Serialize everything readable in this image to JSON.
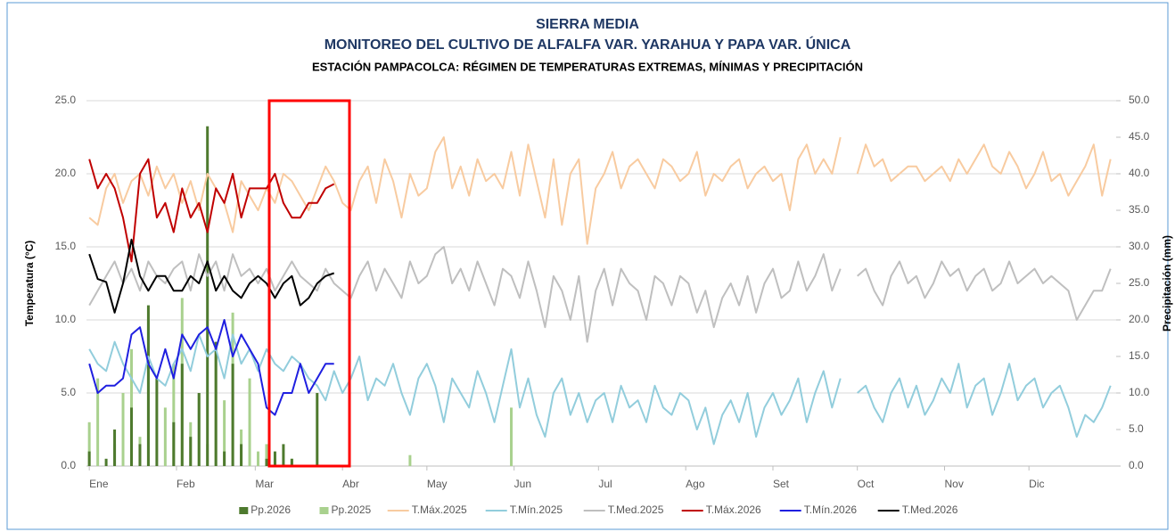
{
  "chart_data": {
    "type": "line",
    "title": "SIERRA MEDIA",
    "subtitle": "MONITOREO DEL CULTIVO DE ALFALFA VAR. YARAHUA Y PAPA VAR. ÚNICA",
    "description": "ESTACIÓN PAMPACOLCA: RÉGIMEN DE TEMPERATURAS EXTREMAS, MÍNIMAS Y PRECIPITACIÓN",
    "y_label": "Temperatura (°C)",
    "y2_label": "Precipitación (mm)",
    "grid": true,
    "legend": "bottom",
    "xlim": [
      0,
      366
    ],
    "xticks": [
      {
        "value": 1,
        "label": "Ene"
      },
      {
        "value": 32,
        "label": "Feb"
      },
      {
        "value": 60,
        "label": "Mar"
      },
      {
        "value": 91,
        "label": "Abr"
      },
      {
        "value": 121,
        "label": "May"
      },
      {
        "value": 152,
        "label": "Jun"
      },
      {
        "value": 182,
        "label": "Jul"
      },
      {
        "value": 213,
        "label": "Ago"
      },
      {
        "value": 244,
        "label": "Set"
      },
      {
        "value": 274,
        "label": "Oct"
      },
      {
        "value": 305,
        "label": "Nov"
      },
      {
        "value": 335,
        "label": "Dic"
      }
    ],
    "ylim": [
      0,
      25
    ],
    "yticks": [
      {
        "value": 0,
        "label": "0.0"
      },
      {
        "value": 5,
        "label": "5.0"
      },
      {
        "value": 10,
        "label": "10.0"
      },
      {
        "value": 15,
        "label": "15.0"
      },
      {
        "value": 20,
        "label": "20.0"
      },
      {
        "value": 25,
        "label": "25.0"
      }
    ],
    "y2lim": [
      0,
      50
    ],
    "y2ticks": [
      {
        "value": 0,
        "label": "0.0"
      },
      {
        "value": 5,
        "label": "5.0"
      },
      {
        "value": 10,
        "label": "10.0"
      },
      {
        "value": 15,
        "label": "15.0"
      },
      {
        "value": 20,
        "label": "20.0"
      },
      {
        "value": 25,
        "label": "25.0"
      },
      {
        "value": 30,
        "label": "30.0"
      },
      {
        "value": 35,
        "label": "35.0"
      },
      {
        "value": 40,
        "label": "40.0"
      },
      {
        "value": 45,
        "label": "45.0"
      },
      {
        "value": 50,
        "label": "50.0"
      }
    ],
    "x": [
      1,
      4,
      7,
      10,
      13,
      16,
      19,
      22,
      25,
      28,
      31,
      34,
      37,
      40,
      43,
      46,
      49,
      52,
      55,
      58,
      61,
      64,
      67,
      70,
      73,
      76,
      79,
      82,
      85,
      88,
      91,
      94,
      97,
      100,
      103,
      106,
      109,
      112,
      115,
      118,
      121,
      124,
      127,
      130,
      133,
      136,
      139,
      142,
      145,
      148,
      151,
      154,
      157,
      160,
      163,
      166,
      169,
      172,
      175,
      178,
      181,
      184,
      187,
      190,
      193,
      196,
      199,
      202,
      205,
      208,
      211,
      214,
      217,
      220,
      223,
      226,
      229,
      232,
      235,
      238,
      241,
      244,
      247,
      250,
      253,
      256,
      259,
      262,
      265,
      268,
      271,
      274,
      277,
      280,
      283,
      286,
      289,
      292,
      295,
      298,
      301,
      304,
      307,
      310,
      313,
      316,
      319,
      322,
      325,
      328,
      331,
      334,
      337,
      340,
      343,
      346,
      349,
      352,
      355,
      358,
      361,
      364
    ],
    "series": [
      {
        "name": "Pp.2026",
        "type": "bar",
        "axis": "y2",
        "color": "#4e7a2e",
        "x": [
          1,
          4,
          7,
          10,
          13,
          16,
          19,
          22,
          25,
          28,
          31,
          34,
          37,
          40,
          43,
          46,
          49,
          52,
          55,
          58,
          61,
          64,
          67,
          70,
          73,
          76,
          79,
          82,
          85,
          88
        ],
        "values": [
          2,
          0,
          1,
          5,
          0,
          8,
          3,
          22,
          12,
          0,
          6,
          14,
          4,
          10,
          46.5,
          17,
          2,
          14,
          3,
          0,
          0,
          1,
          2,
          3,
          1,
          0,
          0,
          10,
          0,
          0
        ]
      },
      {
        "name": "Pp.2025",
        "type": "bar",
        "axis": "y2",
        "color": "#a9d18e",
        "values": [
          6,
          12,
          0,
          3,
          10,
          16,
          4,
          20,
          0,
          8,
          14,
          23,
          6,
          10,
          3,
          15,
          9,
          21,
          5,
          12,
          2,
          3,
          1,
          0,
          1,
          0,
          0,
          0,
          0,
          0,
          0,
          0,
          0,
          0,
          0,
          0,
          0,
          0,
          1.5,
          0,
          0,
          0,
          0,
          0,
          0,
          0,
          0,
          0,
          0,
          0,
          8,
          0,
          0,
          0,
          0,
          0,
          0,
          0,
          0,
          0,
          0,
          0,
          0,
          0,
          0,
          0,
          0,
          0,
          0,
          0,
          0,
          0,
          0,
          0,
          0,
          0,
          0,
          0,
          0,
          0,
          0,
          0,
          0,
          0,
          0,
          0,
          0,
          0,
          0,
          0,
          0,
          0,
          0,
          0,
          0,
          0,
          0,
          0,
          0,
          0,
          0,
          0,
          0,
          0,
          0,
          0,
          0,
          0,
          0,
          0,
          0,
          0,
          0,
          0,
          0,
          0,
          0,
          0,
          0,
          0,
          0,
          0
        ]
      },
      {
        "name": "T.Máx.2025",
        "color": "#f8cba0",
        "values": [
          17,
          16.5,
          19,
          20,
          18,
          19.5,
          20,
          18.5,
          20.5,
          19,
          20,
          18,
          19.5,
          17.5,
          20,
          19,
          18,
          16,
          19.5,
          18.5,
          17.5,
          19,
          18,
          20,
          19.5,
          18.5,
          17.5,
          19,
          20.5,
          19.5,
          18,
          17.5,
          19.5,
          20.5,
          18,
          21,
          19.5,
          17,
          20,
          18.5,
          19,
          21.5,
          22.5,
          19,
          20.5,
          18.5,
          21,
          19.5,
          20,
          19,
          21.5,
          18.5,
          22,
          19.5,
          17,
          21,
          16.5,
          20,
          21,
          15.2,
          19,
          20,
          21.5,
          19,
          20.5,
          21,
          20,
          19,
          21,
          20.5,
          19.5,
          20,
          21.5,
          18.5,
          20,
          19.5,
          20.5,
          21,
          19,
          20,
          20.5,
          19.5,
          20,
          17.5,
          21,
          22,
          20,
          21,
          20,
          22.5,
          null,
          20,
          22,
          20.5,
          21,
          19.5,
          20,
          20.5,
          20.5,
          19.5,
          20,
          20.5,
          19.5,
          21,
          20,
          21,
          22,
          20.5,
          20,
          21.5,
          20.5,
          19,
          20,
          21.5,
          19.5,
          20,
          18.5,
          19.5,
          20.5,
          22,
          18.5,
          21
        ]
      },
      {
        "name": "T.Mín.2025",
        "color": "#92cddc",
        "values": [
          8,
          7,
          6.5,
          8.5,
          7,
          6,
          5,
          7.5,
          6,
          5.5,
          7,
          8,
          6.5,
          9,
          7.5,
          8,
          6,
          9,
          7,
          8,
          6.5,
          8,
          7,
          6.5,
          7.5,
          7,
          6,
          5.5,
          4.5,
          6.5,
          5,
          6,
          7.5,
          4.5,
          6,
          5.5,
          7,
          5,
          3.5,
          6,
          7,
          5.5,
          3,
          6,
          5,
          4,
          6.5,
          5,
          3,
          5.5,
          8,
          4,
          6,
          3.5,
          2,
          5,
          6,
          3.5,
          5,
          3,
          4.5,
          5,
          3,
          5.5,
          4,
          4.5,
          3,
          5.5,
          4,
          3.5,
          5,
          4.5,
          2.5,
          4,
          1.5,
          3.5,
          4.5,
          3,
          5,
          2,
          4,
          5,
          3.5,
          4.5,
          6,
          3,
          5,
          6.5,
          4,
          6,
          null,
          5,
          5.5,
          4,
          3,
          5,
          6,
          4,
          5.5,
          3.5,
          4.5,
          6,
          5,
          7,
          4,
          5.5,
          6,
          3.5,
          5,
          7,
          4.5,
          5.5,
          6,
          4,
          5,
          5.5,
          4,
          2,
          3.5,
          3,
          4,
          5.5
        ]
      },
      {
        "name": "T.Med.2025",
        "color": "#bfbfbf",
        "values": [
          11,
          12,
          13,
          14,
          12.5,
          13.5,
          12,
          14,
          13,
          12.5,
          13.5,
          14,
          12,
          14.5,
          13,
          14,
          12,
          14.5,
          13,
          13.5,
          12.5,
          13.5,
          12,
          13,
          14,
          13,
          12.5,
          12,
          13.5,
          12.5,
          12,
          11.5,
          13,
          14,
          12,
          13.5,
          12.5,
          11.5,
          14,
          12.5,
          13,
          14.5,
          15,
          12.5,
          13.5,
          12,
          14,
          12.5,
          11,
          13.5,
          13,
          11.5,
          14,
          12,
          9.5,
          13,
          12,
          10,
          13,
          8.5,
          12,
          13.5,
          11,
          13.5,
          12.5,
          12,
          10,
          13,
          12.5,
          11,
          13,
          12.5,
          10.5,
          12,
          9.5,
          11.5,
          12.5,
          11,
          13,
          10.5,
          12.5,
          13.5,
          11.5,
          12,
          14,
          12,
          13,
          14.5,
          12,
          13.5,
          null,
          13,
          13.5,
          12,
          11,
          13,
          14,
          12.5,
          13,
          11.5,
          12.5,
          14,
          13,
          13.5,
          12,
          13,
          13.5,
          12,
          12.5,
          14,
          12.5,
          13,
          13.5,
          12.5,
          13,
          12.5,
          12,
          10,
          11,
          12,
          12,
          13.5
        ]
      },
      {
        "name": "T.Máx.2026",
        "color": "#c00000",
        "x": [
          1,
          4,
          7,
          10,
          13,
          16,
          19,
          22,
          25,
          28,
          31,
          34,
          37,
          40,
          43,
          46,
          49,
          52,
          55,
          58,
          61,
          64,
          67,
          70,
          73,
          76,
          79,
          82,
          85,
          88
        ],
        "values": [
          21,
          19,
          20,
          19,
          17,
          14,
          20,
          21,
          17,
          18,
          16,
          19,
          17,
          18,
          16,
          19,
          18,
          20,
          17,
          19,
          19,
          19,
          20,
          18,
          17,
          17,
          18,
          18,
          19,
          19.3
        ]
      },
      {
        "name": "T.Mín.2026",
        "color": "#1f1fe0",
        "x": [
          1,
          4,
          7,
          10,
          13,
          16,
          19,
          22,
          25,
          28,
          31,
          34,
          37,
          40,
          43,
          46,
          49,
          52,
          55,
          58,
          61,
          64,
          67,
          70,
          73,
          76,
          79,
          82,
          85,
          88
        ],
        "values": [
          7,
          5,
          5.5,
          5.5,
          6,
          9,
          9.5,
          7,
          6,
          8,
          6,
          9,
          8,
          9,
          9.5,
          8,
          10,
          7.5,
          9,
          8,
          7,
          4,
          3.5,
          5,
          5,
          7,
          5,
          6,
          7,
          7
        ]
      },
      {
        "name": "T.Med.2026",
        "color": "#000000",
        "x": [
          1,
          4,
          7,
          10,
          13,
          16,
          19,
          22,
          25,
          28,
          31,
          34,
          37,
          40,
          43,
          46,
          49,
          52,
          55,
          58,
          61,
          64,
          67,
          70,
          73,
          76,
          79,
          82,
          85,
          88
        ],
        "values": [
          14.5,
          12.8,
          12.6,
          10.5,
          12.5,
          15.5,
          13,
          12,
          13,
          13,
          12,
          12,
          13,
          12.5,
          14,
          12,
          13,
          12,
          11.5,
          12.5,
          13,
          12.5,
          11.5,
          12.5,
          13,
          11,
          11.5,
          12.5,
          13,
          13.2
        ]
      }
    ]
  }
}
